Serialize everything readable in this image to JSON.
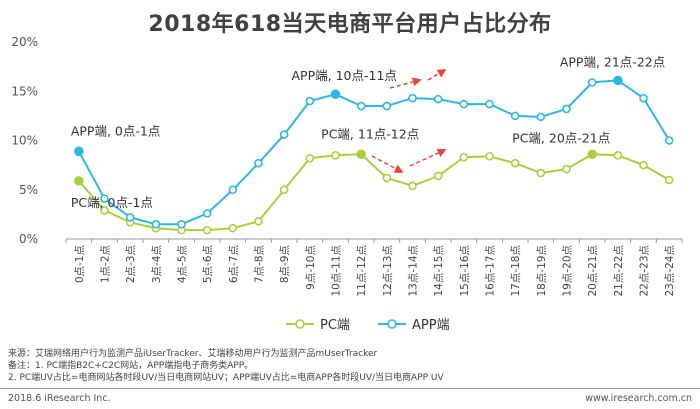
{
  "chart_data": {
    "type": "line",
    "title": "2018年618当天电商平台用户占比分布",
    "categories": [
      "0点-1点",
      "1点-2点",
      "2点-3点",
      "3点-4点",
      "4点-5点",
      "5点-6点",
      "6点-7点",
      "7点-8点",
      "8点-9点",
      "9点-10点",
      "10点-11点",
      "11点-12点",
      "12点-13点",
      "13点-14点",
      "14点-15点",
      "15点-16点",
      "16点-17点",
      "17点-18点",
      "18点-19点",
      "19点-20点",
      "20点-21点",
      "21点-22点",
      "22点-23点",
      "23点-24点"
    ],
    "ylim": [
      0,
      20
    ],
    "yticks": [
      "0%",
      "5%",
      "10%",
      "15%",
      "20%"
    ],
    "y_unit": "%",
    "grid": false,
    "legend_position": "bottom",
    "series": [
      {
        "name": "PC端",
        "color": "#a9d03c",
        "values": [
          5.9,
          2.9,
          1.7,
          1.1,
          0.9,
          0.9,
          1.1,
          1.8,
          5.0,
          8.2,
          8.5,
          8.6,
          6.2,
          5.4,
          6.4,
          8.3,
          8.4,
          7.7,
          6.7,
          7.1,
          8.6,
          8.5,
          7.5,
          6.0
        ]
      },
      {
        "name": "APP端",
        "color": "#2fb7e3",
        "values": [
          8.9,
          4.1,
          2.2,
          1.5,
          1.5,
          2.6,
          5.0,
          7.7,
          10.6,
          14.0,
          14.7,
          13.5,
          13.5,
          14.3,
          14.2,
          13.7,
          13.7,
          12.5,
          12.4,
          13.2,
          15.9,
          16.1,
          14.3,
          10.0
        ]
      }
    ],
    "annotations": [
      {
        "text": "APP端, 0点-1点",
        "series": "APP端",
        "category": "0点-1点"
      },
      {
        "text": "PC端, 0点-1点",
        "series": "PC端",
        "category": "0点-1点"
      },
      {
        "text": "APP端, 10点-11点",
        "series": "APP端",
        "category": "10点-11点"
      },
      {
        "text": "PC端, 11点-12点",
        "series": "PC端",
        "category": "11点-12点"
      },
      {
        "text": "APP端, 21点-22点",
        "series": "APP端",
        "category": "21点-22点"
      },
      {
        "text": "PC端, 20点-21点",
        "series": "PC端",
        "category": "20点-21点"
      }
    ]
  },
  "footnotes": [
    "来源：艾瑞网络用户行为监测产品iUserTracker、艾瑞移动用户行为监测产品mUserTracker",
    "备注：1. PC端指B2C+C2C网站，APP端指电子商务类APP。",
    "2. PC端UV占比=电商网站各时段UV/当日电商网站UV；APP端UV占比=电商APP各时段UV/当日电商APP UV"
  ],
  "footer": {
    "left": "2018.6 iResearch Inc.",
    "right": "www.iresearch.com.cn"
  },
  "colors": {
    "arrow": "#e8463a",
    "axis": "#999999"
  }
}
